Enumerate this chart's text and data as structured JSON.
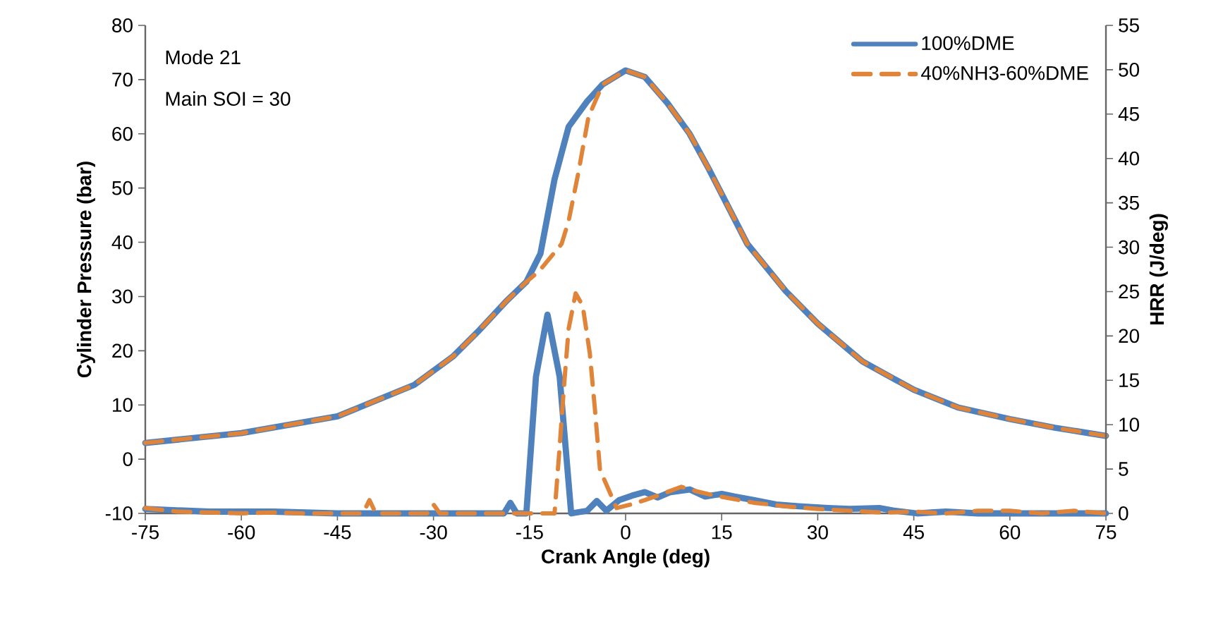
{
  "chart_data": {
    "type": "line",
    "xlabel": "Crank Angle (deg)",
    "ylabel": "Cylinder Pressure (bar)",
    "y2label": "HRR (J/deg)",
    "annotations": [
      "Mode 21",
      "Main SOI = 30"
    ],
    "xlim": [
      -75,
      75
    ],
    "xticks": [
      -75,
      -60,
      -45,
      -30,
      -15,
      0,
      15,
      30,
      45,
      60,
      75
    ],
    "ylim": [
      -10,
      80
    ],
    "yticks": [
      -10,
      0,
      10,
      20,
      30,
      40,
      50,
      60,
      70,
      80
    ],
    "y2lim": [
      0,
      55
    ],
    "y2ticks": [
      0,
      5,
      10,
      15,
      20,
      25,
      30,
      35,
      40,
      45,
      50,
      55
    ],
    "legend": "top right",
    "grid": false,
    "series": [
      {
        "name": "100%DME",
        "color": "#4f81bd",
        "line_style": "solid",
        "x": [
          -75,
          -60,
          -45,
          -33,
          -27,
          -23,
          -18.5,
          -15.5,
          -13.3,
          -11.1,
          -8.9,
          -6,
          -3.6,
          0,
          3,
          6.5,
          10,
          13,
          19,
          25,
          30,
          37,
          45,
          52,
          60,
          67,
          75
        ],
        "values": [
          3.0,
          4.8,
          7.9,
          13.7,
          18.9,
          23.6,
          29.3,
          32.7,
          37.9,
          51.6,
          61.3,
          66,
          69.1,
          71.7,
          70.5,
          65.7,
          60,
          53.5,
          39.7,
          31,
          25,
          18,
          12.8,
          9.5,
          7.4,
          5.8,
          4.3
        ]
      },
      {
        "name": "40%NH3-60%DME",
        "color": "#e0843a",
        "line_style": "dashed",
        "x": [
          -75,
          -60,
          -45,
          -33,
          -27,
          -23,
          -18.5,
          -15.5,
          -13.5,
          -10,
          -8.9,
          -7.4,
          -5.8,
          -3.6,
          0,
          3,
          6.5,
          10,
          13,
          19,
          25,
          30,
          37,
          45,
          52,
          60,
          67,
          75
        ],
        "values": [
          3.0,
          4.8,
          7.9,
          13.7,
          18.9,
          23.6,
          29.3,
          32.7,
          34.7,
          39.7,
          43.9,
          52.7,
          63.1,
          69.1,
          71.7,
          70.5,
          65.7,
          60,
          53.5,
          39.7,
          31,
          25,
          18,
          12.8,
          9.5,
          7.4,
          5.8,
          4.3
        ]
      },
      {
        "color": "#4f81bd",
        "line_style": "solid",
        "axis": "y2",
        "x": [
          -75,
          -65,
          -55,
          -45,
          -35,
          -25,
          -19,
          -18,
          -17,
          -15.5,
          -14,
          -12.2,
          -10.3,
          -8.5,
          -6,
          -4.5,
          -3,
          -1,
          1,
          3,
          5,
          7,
          10,
          12.4,
          15,
          17,
          20,
          23.5,
          27,
          31.6,
          35,
          39.6,
          42,
          45.5,
          50,
          55,
          60,
          65,
          70,
          75
        ],
        "values": [
          0.5,
          0.2,
          0.2,
          0,
          0,
          0,
          0,
          1.2,
          0,
          0,
          15.4,
          22.4,
          15.4,
          0,
          0.3,
          1.4,
          0.3,
          1.5,
          2.0,
          2.4,
          1.8,
          2.4,
          2.7,
          1.9,
          2.2,
          1.9,
          1.5,
          1.0,
          0.8,
          0.6,
          0.5,
          0.6,
          0.3,
          0,
          0.2,
          0,
          0,
          0,
          0,
          0
        ]
      },
      {
        "color": "#e0843a",
        "line_style": "dashed",
        "axis": "y2",
        "x": [
          -75,
          -70,
          -65,
          -60,
          -55,
          -50,
          -45,
          -41,
          -40,
          -39,
          -35,
          -31,
          -30,
          -29,
          -25,
          -20,
          -16,
          -12,
          -11.1,
          -10.3,
          -9.6,
          -8.9,
          -7.8,
          -6.7,
          -5.6,
          -4.8,
          -4.0,
          -1.4,
          0.8,
          3,
          5,
          8.7,
          11,
          14,
          17,
          20,
          25,
          30,
          35,
          40,
          45,
          50,
          55,
          60,
          65,
          70,
          75
        ],
        "values": [
          0.6,
          0.2,
          0.1,
          0,
          0.1,
          0,
          0,
          0,
          1.5,
          0,
          0,
          0,
          1,
          0,
          0,
          0,
          0,
          0,
          0,
          7.5,
          14.5,
          20.8,
          24.8,
          23.4,
          18.1,
          11.8,
          4.9,
          0.6,
          1.0,
          1.5,
          2.0,
          3.0,
          2.5,
          2.0,
          1.6,
          1.2,
          0.8,
          0.5,
          0.3,
          0.1,
          0.2,
          0,
          0.3,
          0.3,
          0,
          0.3,
          0
        ]
      }
    ]
  }
}
